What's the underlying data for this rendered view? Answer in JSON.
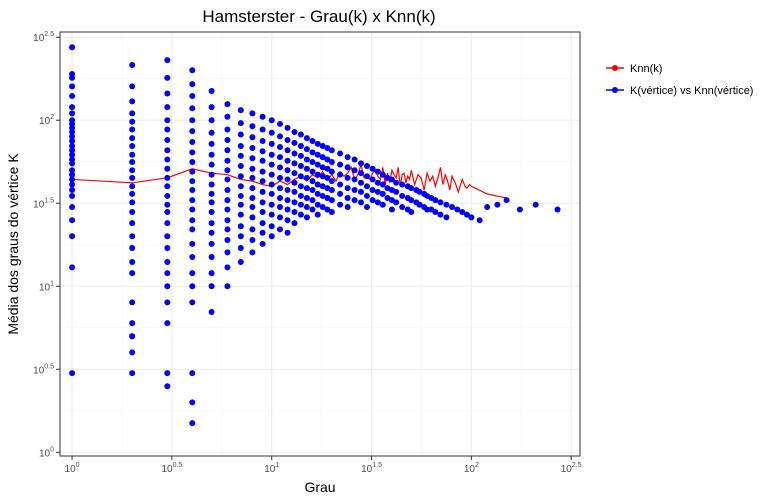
{
  "chart_data": {
    "type": "scatter",
    "title": "Hamsterster - Grau(k) x Knn(k)",
    "xlabel": "Grau",
    "ylabel": "Média dos graus do vértice K",
    "xscale": "log10",
    "yscale": "log10",
    "xlim": [
      0.87,
      1.85
    ],
    "ylim": [
      1,
      316.2
    ],
    "xticks": [
      {
        "value": 1,
        "base": "10",
        "exp": "0"
      },
      {
        "value": 3.162,
        "base": "10",
        "exp": "0.5"
      },
      {
        "value": 10,
        "base": "10",
        "exp": "1"
      },
      {
        "value": 31.62,
        "base": "10",
        "exp": "1.5"
      },
      {
        "value": 100,
        "base": "10",
        "exp": "2"
      },
      {
        "value": 316.2,
        "base": "10",
        "exp": "2.5"
      }
    ],
    "yticks": [
      {
        "value": 1,
        "base": "10",
        "exp": "0"
      },
      {
        "value": 3.162,
        "base": "10",
        "exp": "0.5"
      },
      {
        "value": 10,
        "base": "10",
        "exp": "1"
      },
      {
        "value": 31.62,
        "base": "10",
        "exp": "1.5"
      },
      {
        "value": 100,
        "base": "10",
        "exp": "2"
      },
      {
        "value": 316.2,
        "base": "10",
        "exp": "2.5"
      }
    ],
    "grid": true,
    "legend_position": "right",
    "series": [
      {
        "name": "Knn(k)",
        "kind": "line",
        "color": "#ff0000",
        "x": [
          1,
          2,
          3,
          4,
          5,
          6,
          7,
          8,
          9,
          10,
          11,
          12,
          13,
          14,
          15,
          16,
          17,
          18,
          19,
          20,
          21,
          22,
          23,
          24,
          25,
          26,
          27,
          28,
          29,
          30,
          31,
          32,
          33,
          34,
          35,
          36,
          37,
          38,
          39,
          40,
          41,
          42,
          43,
          44,
          45,
          46,
          47,
          48,
          49,
          50,
          52,
          54,
          56,
          58,
          60,
          62,
          64,
          66,
          68,
          70,
          72,
          74,
          76,
          78,
          80,
          83,
          86,
          90,
          93,
          95,
          98,
          100,
          120,
          150
        ],
        "y": [
          44,
          42,
          45,
          51,
          48,
          47,
          44,
          43,
          41,
          40,
          43,
          41,
          44,
          46,
          43,
          47,
          45,
          49,
          44,
          47,
          43,
          49,
          46,
          48,
          52,
          44,
          47,
          54,
          45,
          46,
          44,
          48,
          50,
          46,
          44,
          52,
          41,
          48,
          42,
          50,
          47,
          45,
          52,
          40,
          47,
          48,
          42,
          46,
          44,
          50,
          41,
          47,
          45,
          38,
          48,
          43,
          46,
          40,
          45,
          52,
          41,
          47,
          43,
          38,
          46,
          42,
          37,
          44,
          40,
          39,
          41,
          40,
          36,
          34
        ]
      },
      {
        "name": "K(vértice) vs Knn(vértice)",
        "kind": "points",
        "color": "#0000ff",
        "x": [
          1,
          1,
          1,
          1,
          1,
          1,
          1,
          1,
          1,
          1,
          1,
          1,
          1,
          1,
          1,
          1,
          1,
          1,
          1,
          1,
          1,
          1,
          1,
          1,
          1,
          1,
          1,
          1,
          1,
          2,
          2,
          2,
          2,
          2,
          2,
          2,
          2,
          2,
          2,
          2,
          2,
          2,
          2,
          2,
          2,
          2,
          2,
          2,
          2,
          2,
          2,
          2,
          2,
          2,
          2,
          2,
          3,
          3,
          3,
          3,
          3,
          3,
          3,
          3,
          3,
          3,
          3,
          3,
          3,
          3,
          3,
          3,
          3,
          3,
          3,
          3,
          3,
          3,
          3,
          3,
          3,
          4,
          4,
          4,
          4,
          4,
          4,
          4,
          4,
          4,
          4,
          4,
          4,
          4,
          4,
          4,
          4,
          4,
          4,
          4,
          4,
          4,
          4,
          4,
          4,
          5,
          5,
          5,
          5,
          5,
          5,
          5,
          5,
          5,
          5,
          5,
          5,
          5,
          5,
          5,
          5,
          5,
          5,
          5,
          6,
          6,
          6,
          6,
          6,
          6,
          6,
          6,
          6,
          6,
          6,
          6,
          6,
          6,
          6,
          6,
          6,
          7,
          7,
          7,
          7,
          7,
          7,
          7,
          7,
          7,
          7,
          7,
          7,
          7,
          7,
          7,
          8,
          8,
          8,
          8,
          8,
          8,
          8,
          8,
          8,
          8,
          8,
          8,
          8,
          8,
          9,
          9,
          9,
          9,
          9,
          9,
          9,
          9,
          9,
          9,
          9,
          9,
          9,
          10,
          10,
          10,
          10,
          10,
          10,
          10,
          10,
          10,
          10,
          10,
          10,
          11,
          11,
          11,
          11,
          11,
          11,
          11,
          11,
          11,
          11,
          11,
          12,
          12,
          12,
          12,
          12,
          12,
          12,
          12,
          12,
          12,
          12,
          13,
          13,
          13,
          13,
          13,
          13,
          13,
          13,
          13,
          13,
          14,
          14,
          14,
          14,
          14,
          14,
          14,
          14,
          14,
          15,
          15,
          15,
          15,
          15,
          15,
          15,
          15,
          15,
          16,
          16,
          16,
          16,
          16,
          16,
          16,
          16,
          17,
          17,
          17,
          17,
          17,
          17,
          17,
          17,
          18,
          18,
          18,
          18,
          18,
          18,
          18,
          19,
          19,
          19,
          19,
          19,
          19,
          19,
          20,
          20,
          20,
          20,
          20,
          20,
          20,
          22,
          22,
          22,
          22,
          22,
          22,
          24,
          24,
          24,
          24,
          24,
          24,
          26,
          26,
          26,
          26,
          26,
          28,
          28,
          28,
          28,
          28,
          30,
          30,
          30,
          30,
          30,
          32,
          32,
          32,
          32,
          34,
          34,
          34,
          34,
          36,
          36,
          36,
          36,
          38,
          38,
          38,
          40,
          40,
          40,
          40,
          42,
          42,
          42,
          45,
          45,
          45,
          48,
          48,
          48,
          50,
          50,
          50,
          53,
          53,
          55,
          55,
          58,
          58,
          60,
          60,
          63,
          63,
          66,
          66,
          70,
          70,
          75,
          75,
          80,
          85,
          90,
          95,
          100,
          110,
          120,
          135,
          150,
          175,
          210,
          270
        ],
        "y": [
          275,
          190,
          180,
          160,
          140,
          120,
          110,
          100,
          95,
          90,
          85,
          80,
          75,
          70,
          66,
          62,
          58,
          55,
          50,
          47,
          44,
          41,
          38,
          35,
          30,
          25,
          20,
          13,
          3,
          215,
          160,
          130,
          110,
          98,
          88,
          78,
          70,
          62,
          56,
          50,
          45,
          40,
          36,
          32,
          28,
          24,
          20,
          17,
          14,
          12,
          8,
          6,
          5,
          4,
          3,
          5,
          230,
          180,
          145,
          120,
          100,
          88,
          76,
          66,
          58,
          51,
          45,
          40,
          35,
          31,
          28,
          24,
          20,
          17,
          14,
          12,
          10,
          8,
          6,
          3,
          2.5,
          200,
          165,
          140,
          118,
          100,
          86,
          74,
          64,
          56,
          49,
          43,
          38,
          33,
          29,
          25,
          22,
          18,
          15,
          12,
          10,
          8,
          3,
          2,
          1.5,
          150,
          120,
          100,
          84,
          72,
          62,
          54,
          47,
          41,
          36,
          32,
          28,
          24,
          21,
          18,
          15,
          12,
          10,
          7,
          125,
          105,
          88,
          76,
          66,
          57,
          50,
          44,
          38,
          33,
          29,
          25,
          22,
          19,
          16,
          13,
          10,
          115,
          96,
          82,
          70,
          61,
          53,
          46,
          40,
          35,
          31,
          27,
          23,
          20,
          17,
          14,
          110,
          92,
          79,
          68,
          59,
          51,
          45,
          39,
          34,
          30,
          26,
          22,
          19,
          16,
          105,
          88,
          75,
          65,
          57,
          49,
          43,
          37,
          32,
          28,
          24,
          21,
          18,
          100,
          84,
          72,
          62,
          54,
          47,
          41,
          36,
          31,
          27,
          23,
          20,
          95,
          80,
          69,
          60,
          52,
          45,
          39,
          34,
          30,
          26,
          22,
          90,
          76,
          66,
          57,
          50,
          44,
          38,
          33,
          29,
          25,
          21,
          85,
          73,
          63,
          55,
          48,
          42,
          37,
          32,
          28,
          24,
          82,
          70,
          61,
          53,
          46,
          40,
          35,
          31,
          27,
          78,
          67,
          58,
          51,
          45,
          39,
          34,
          30,
          26,
          75,
          64,
          56,
          49,
          43,
          38,
          33,
          29,
          72,
          62,
          54,
          47,
          41,
          36,
          31,
          27,
          70,
          60,
          52,
          46,
          40,
          35,
          30,
          68,
          58,
          51,
          45,
          39,
          34,
          29,
          66,
          56,
          49,
          43,
          38,
          33,
          28,
          63,
          54,
          47,
          41,
          36,
          31,
          60,
          52,
          45,
          39,
          34,
          30,
          58,
          50,
          44,
          38,
          33,
          55,
          48,
          42,
          37,
          32,
          53,
          46,
          40,
          35,
          30,
          51,
          44,
          38,
          33,
          49,
          42,
          37,
          32,
          47,
          41,
          36,
          31,
          45,
          39,
          34,
          44,
          38,
          33,
          29,
          42,
          37,
          32,
          41,
          35,
          30,
          40,
          34,
          29,
          39,
          33,
          28,
          38,
          32,
          37,
          31,
          36,
          30,
          35,
          29,
          34,
          29,
          33,
          28,
          32,
          27,
          31,
          26,
          30,
          29,
          28,
          27,
          26,
          25,
          30,
          31,
          33,
          29,
          31,
          29
        ]
      }
    ]
  }
}
